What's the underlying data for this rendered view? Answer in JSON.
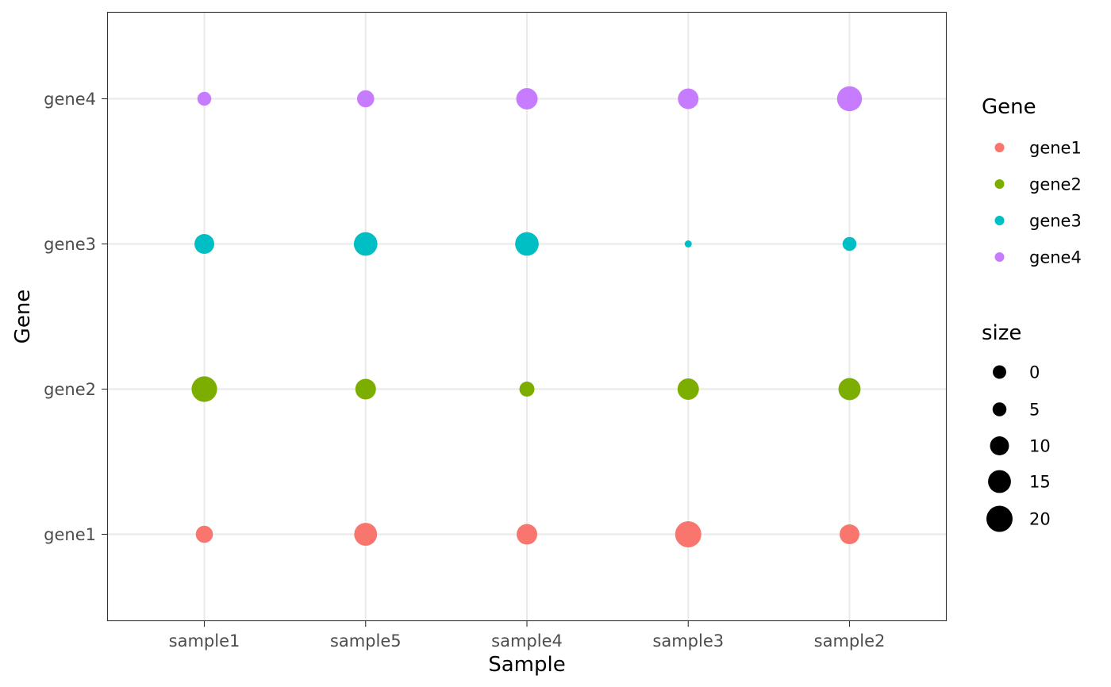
{
  "chart_data": {
    "type": "scatter",
    "xlabel": "Sample",
    "ylabel": "Gene",
    "x_categories": [
      "sample1",
      "sample5",
      "sample4",
      "sample3",
      "sample2"
    ],
    "y_categories": [
      "gene1",
      "gene2",
      "gene3",
      "gene4"
    ],
    "grid": true,
    "legend_position": "right",
    "color_legend": {
      "title": "Gene",
      "entries": [
        "gene1",
        "gene2",
        "gene3",
        "gene4"
      ],
      "colors": [
        "#F8766D",
        "#7CAE00",
        "#00BFC4",
        "#C77CFF"
      ]
    },
    "size_legend": {
      "title": "size",
      "values": [
        0,
        5,
        10,
        15,
        20
      ],
      "labels": [
        "0",
        "5",
        "10",
        "15",
        "20"
      ]
    },
    "size_range": [
      0,
      20
    ],
    "points": [
      {
        "sample": "sample1",
        "gene": "gene1",
        "size": 8
      },
      {
        "sample": "sample5",
        "gene": "gene1",
        "size": 15
      },
      {
        "sample": "sample4",
        "gene": "gene1",
        "size": 12
      },
      {
        "sample": "sample3",
        "gene": "gene1",
        "size": 20
      },
      {
        "sample": "sample2",
        "gene": "gene1",
        "size": 11
      },
      {
        "sample": "sample1",
        "gene": "gene2",
        "size": 19
      },
      {
        "sample": "sample5",
        "gene": "gene2",
        "size": 12
      },
      {
        "sample": "sample4",
        "gene": "gene2",
        "size": 6
      },
      {
        "sample": "sample3",
        "gene": "gene2",
        "size": 13
      },
      {
        "sample": "sample2",
        "gene": "gene2",
        "size": 14
      },
      {
        "sample": "sample1",
        "gene": "gene3",
        "size": 11
      },
      {
        "sample": "sample5",
        "gene": "gene3",
        "size": 16
      },
      {
        "sample": "sample4",
        "gene": "gene3",
        "size": 16
      },
      {
        "sample": "sample3",
        "gene": "gene3",
        "size": 1
      },
      {
        "sample": "sample2",
        "gene": "gene3",
        "size": 5
      },
      {
        "sample": "sample1",
        "gene": "gene4",
        "size": 5
      },
      {
        "sample": "sample5",
        "gene": "gene4",
        "size": 8
      },
      {
        "sample": "sample4",
        "gene": "gene4",
        "size": 13
      },
      {
        "sample": "sample3",
        "gene": "gene4",
        "size": 12
      },
      {
        "sample": "sample2",
        "gene": "gene4",
        "size": 18
      }
    ]
  }
}
